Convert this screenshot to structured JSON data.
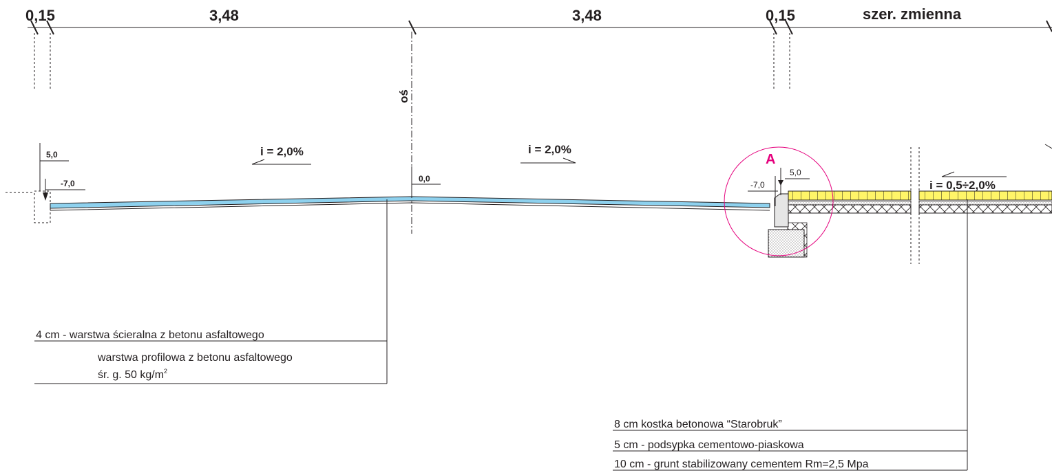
{
  "dimensions": {
    "left_curb": "0,15",
    "left_lane": "3,48",
    "right_lane": "3,48",
    "right_curb": "0,15",
    "sidewalk": "szer. zmienna"
  },
  "axis_label": "oś",
  "levels": {
    "left_top": "5,0",
    "left_bottom": "-7,0",
    "axis": "0,0",
    "detail_top": "5,0",
    "detail_bottom": "-7,0"
  },
  "slopes": {
    "left": "i = 2,0%",
    "right": "i = 2,0%",
    "sidewalk": "i = 0,5÷2,0%"
  },
  "detail_marker": "A",
  "road_layers": {
    "wearing": "4 cm - warstwa ścieralna z betonu asfaltowego",
    "profile_line1": "warstwa profilowa z betonu asfaltowego",
    "profile_line2": "śr. g. 50 kg/m",
    "profile_superscript": "2"
  },
  "sidewalk_layers": {
    "paving": "8 cm  kostka betonowa “Starobruk”",
    "bedding": "5 cm - podsypka cementowo-piaskowa",
    "subbase": "10 cm - grunt stabilizowany cementem Rm=2,5 Mpa"
  },
  "colors": {
    "line": "#231f20",
    "asphalt": "#8ed1ee",
    "paving": "#fff568",
    "detail_circle": "#e5007d",
    "curb": "#e6e6e6"
  }
}
